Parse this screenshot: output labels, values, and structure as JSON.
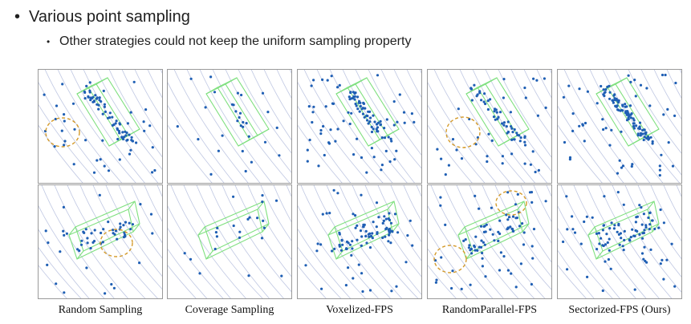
{
  "slide": {
    "bullet": "Various point sampling",
    "subbullet": "Other strategies could not keep the uniform sampling property"
  },
  "methods": [
    {
      "caption": "Random Sampling"
    },
    {
      "caption": "Coverage Sampling"
    },
    {
      "caption": "Voxelized-FPS"
    },
    {
      "caption": "RandomParallel-FPS"
    },
    {
      "caption": "Sectorized-FPS (Ours)"
    }
  ],
  "colors": {
    "scan_lines": "#aab4d8",
    "points": "#1f5fb4",
    "box": "#7fe07f",
    "highlight_circle": "#d49a2a"
  }
}
